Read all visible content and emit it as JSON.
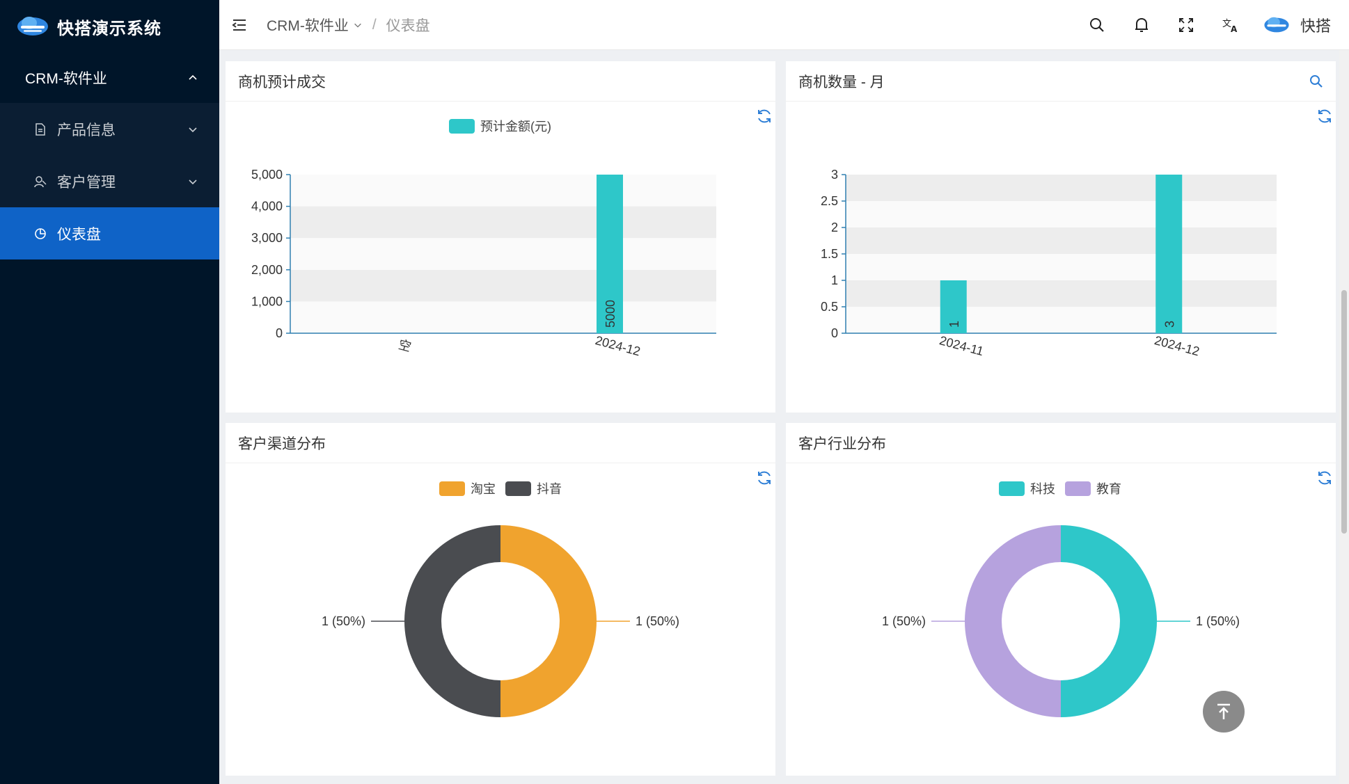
{
  "app": {
    "title": "快搭演示系统"
  },
  "sidebar": {
    "group_label": "CRM-软件业",
    "items": [
      {
        "label": "产品信息",
        "icon": "document-icon"
      },
      {
        "label": "客户管理",
        "icon": "users-icon"
      },
      {
        "label": "仪表盘",
        "icon": "pie-chart-icon",
        "active": true
      }
    ]
  },
  "header": {
    "breadcrumb": [
      "CRM-软件业",
      "/",
      "仪表盘"
    ],
    "user_name": "快搭"
  },
  "cards": {
    "c1": {
      "title": "商机预计成交"
    },
    "c2": {
      "title": "商机数量 - 月"
    },
    "c3": {
      "title": "客户渠道分布"
    },
    "c4": {
      "title": "客户行业分布"
    }
  },
  "colors": {
    "teal": "#2ec7c9",
    "orange": "#f0a32e",
    "gray": "#4a4c50",
    "purple": "#b6a2de",
    "accent": "#0f63c7"
  },
  "chart_data": [
    {
      "type": "bar",
      "title": "商机预计成交",
      "categories": [
        "空",
        "2024-12"
      ],
      "series": [
        {
          "name": "预计金额(元)",
          "values": [
            0,
            5000
          ]
        }
      ],
      "data_labels": [
        "",
        "5000"
      ],
      "yticks": [
        "0",
        "1,000",
        "2,000",
        "3,000",
        "4,000",
        "5,000"
      ],
      "ylim": [
        0,
        5000
      ]
    },
    {
      "type": "bar",
      "title": "商机数量 - 月",
      "categories": [
        "2024-11",
        "2024-12"
      ],
      "series": [
        {
          "values": [
            1,
            3
          ]
        }
      ],
      "data_labels": [
        "1",
        "3"
      ],
      "yticks": [
        "0",
        "0.5",
        "1",
        "1.5",
        "2",
        "2.5",
        "3"
      ],
      "ylim": [
        0,
        3
      ]
    },
    {
      "type": "pie",
      "title": "客户渠道分布",
      "slices": [
        {
          "name": "淘宝",
          "value": 1,
          "label": "1 (50%)"
        },
        {
          "name": "抖音",
          "value": 1,
          "label": "1 (50%)"
        }
      ]
    },
    {
      "type": "pie",
      "title": "客户行业分布",
      "slices": [
        {
          "name": "科技",
          "value": 1,
          "label": "1 (50%)"
        },
        {
          "name": "教育",
          "value": 1,
          "label": "1 (50%)"
        }
      ]
    }
  ]
}
